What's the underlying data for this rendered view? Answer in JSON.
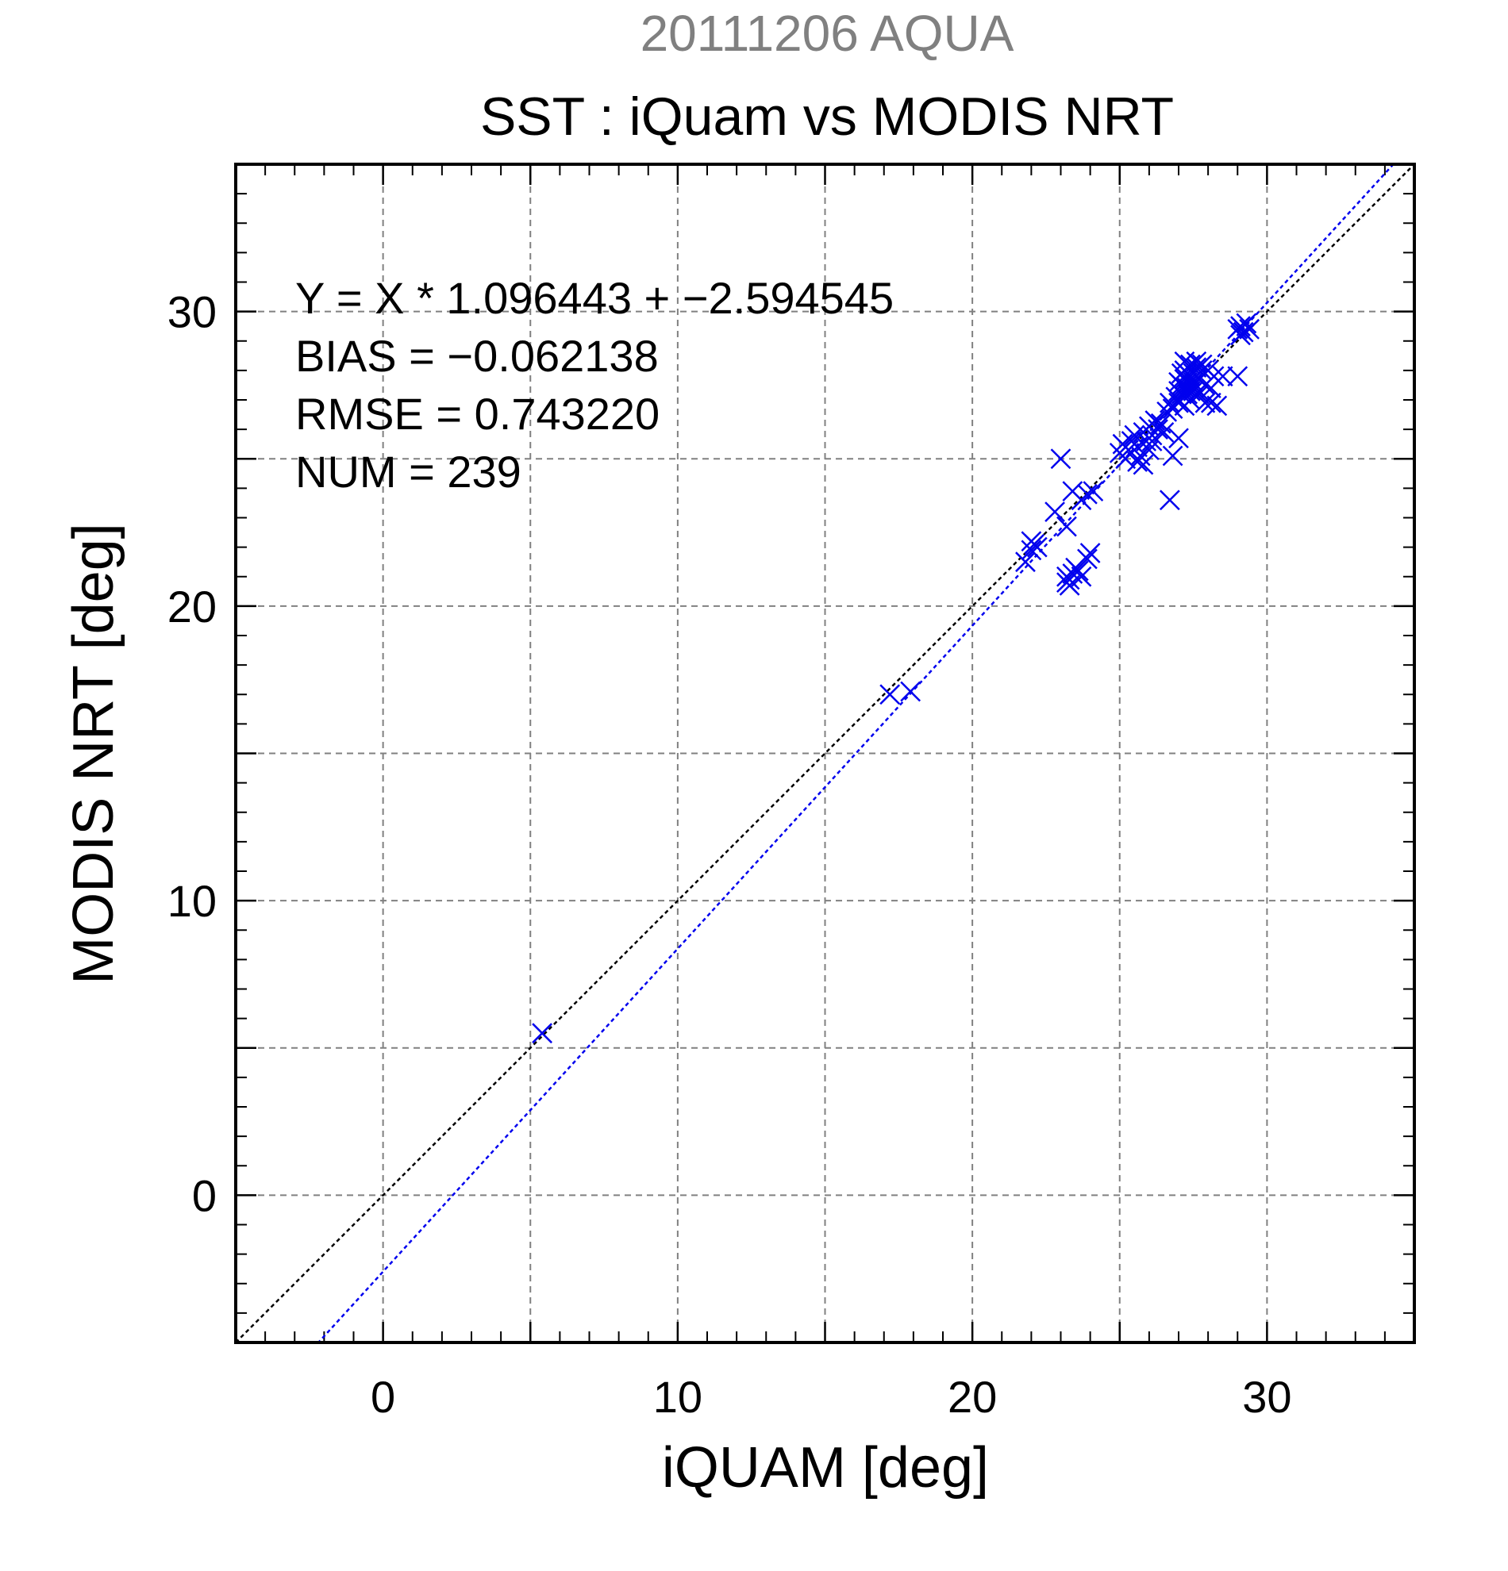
{
  "chart_data": {
    "type": "scatter",
    "title": "SST : iQuam vs MODIS NRT",
    "subtitle": "20111206 AQUA",
    "xlabel": "iQUAM [deg]",
    "ylabel": "MODIS NRT [deg]",
    "xlim": [
      -5,
      35
    ],
    "ylim": [
      -5,
      35
    ],
    "x_ticks": [
      0,
      10,
      20,
      30
    ],
    "y_ticks": [
      0,
      10,
      20,
      30
    ],
    "x_tick_labels": [
      "0",
      "10",
      "20",
      "30"
    ],
    "y_tick_labels": [
      "0",
      "10",
      "20",
      "30"
    ],
    "grid": true,
    "stats": {
      "equation": "Y = X * 1.096443 + −2.594545",
      "bias": "BIAS = −0.062138",
      "rmse": "RMSE = 0.743220",
      "num": "NUM = 239"
    },
    "colors": {
      "points": "#0000ee",
      "fit_line": "#0000ee",
      "identity_line": "#000000",
      "subtitle": "#808080",
      "grid": "#808080"
    },
    "fit": {
      "slope": 1.096443,
      "intercept": -2.594545
    },
    "identity": {
      "slope": 1,
      "intercept": 0
    },
    "points": [
      [
        5.4,
        5.5
      ],
      [
        17.2,
        17.0
      ],
      [
        17.9,
        17.1
      ],
      [
        21.8,
        21.5
      ],
      [
        22.0,
        21.9
      ],
      [
        22.1,
        22.1
      ],
      [
        22.2,
        22.0
      ],
      [
        22.0,
        22.2
      ],
      [
        22.8,
        23.2
      ],
      [
        23.2,
        22.7
      ],
      [
        23.0,
        25.0
      ],
      [
        23.4,
        23.9
      ],
      [
        23.7,
        23.6
      ],
      [
        23.9,
        23.8
      ],
      [
        24.1,
        23.9
      ],
      [
        23.2,
        20.8
      ],
      [
        23.3,
        20.9
      ],
      [
        23.4,
        21.1
      ],
      [
        23.3,
        20.7
      ],
      [
        23.5,
        21.3
      ],
      [
        23.6,
        21.2
      ],
      [
        23.7,
        21.0
      ],
      [
        23.9,
        21.6
      ],
      [
        24.0,
        21.8
      ],
      [
        23.2,
        21.0
      ],
      [
        25.0,
        25.2
      ],
      [
        25.1,
        25.5
      ],
      [
        25.2,
        25.0
      ],
      [
        25.3,
        25.3
      ],
      [
        25.4,
        25.6
      ],
      [
        25.5,
        25.8
      ],
      [
        25.6,
        25.4
      ],
      [
        25.7,
        25.1
      ],
      [
        25.8,
        25.9
      ],
      [
        25.9,
        25.6
      ],
      [
        26.0,
        26.1
      ],
      [
        26.1,
        25.8
      ],
      [
        26.2,
        26.3
      ],
      [
        26.3,
        26.0
      ],
      [
        26.0,
        25.3
      ],
      [
        25.8,
        24.8
      ],
      [
        25.6,
        24.9
      ],
      [
        26.1,
        25.6
      ],
      [
        26.4,
        26.2
      ],
      [
        26.5,
        25.9
      ],
      [
        26.7,
        23.6
      ],
      [
        26.8,
        25.1
      ],
      [
        27.0,
        25.7
      ],
      [
        26.6,
        26.6
      ],
      [
        26.7,
        26.9
      ],
      [
        26.8,
        26.7
      ],
      [
        26.9,
        27.1
      ],
      [
        27.0,
        27.0
      ],
      [
        27.0,
        27.3
      ],
      [
        27.1,
        27.5
      ],
      [
        27.2,
        27.7
      ],
      [
        27.3,
        27.4
      ],
      [
        27.4,
        27.8
      ],
      [
        27.5,
        27.6
      ],
      [
        27.1,
        27.9
      ],
      [
        27.2,
        28.0
      ],
      [
        27.3,
        27.2
      ],
      [
        27.4,
        27.0
      ],
      [
        27.5,
        27.9
      ],
      [
        27.6,
        28.1
      ],
      [
        27.7,
        27.7
      ],
      [
        27.8,
        28.0
      ],
      [
        27.9,
        27.5
      ],
      [
        27.2,
        28.3
      ],
      [
        27.4,
        28.2
      ],
      [
        27.6,
        28.3
      ],
      [
        27.8,
        28.2
      ],
      [
        28.0,
        28.0
      ],
      [
        27.3,
        27.6
      ],
      [
        27.5,
        27.3
      ],
      [
        27.7,
        27.2
      ],
      [
        27.9,
        26.9
      ],
      [
        28.1,
        27.4
      ],
      [
        28.2,
        27.8
      ],
      [
        28.1,
        26.9
      ],
      [
        28.3,
        26.8
      ],
      [
        28.5,
        27.8
      ],
      [
        29.0,
        27.8
      ],
      [
        27.0,
        27.6
      ],
      [
        27.1,
        27.2
      ],
      [
        27.2,
        27.4
      ],
      [
        27.3,
        27.9
      ],
      [
        27.4,
        27.3
      ],
      [
        27.5,
        27.5
      ],
      [
        27.6,
        27.8
      ],
      [
        27.0,
        26.9
      ],
      [
        27.2,
        26.8
      ],
      [
        29.0,
        29.4
      ],
      [
        29.1,
        29.5
      ],
      [
        29.2,
        29.3
      ],
      [
        29.3,
        29.6
      ],
      [
        29.4,
        29.4
      ],
      [
        29.1,
        29.2
      ]
    ]
  }
}
